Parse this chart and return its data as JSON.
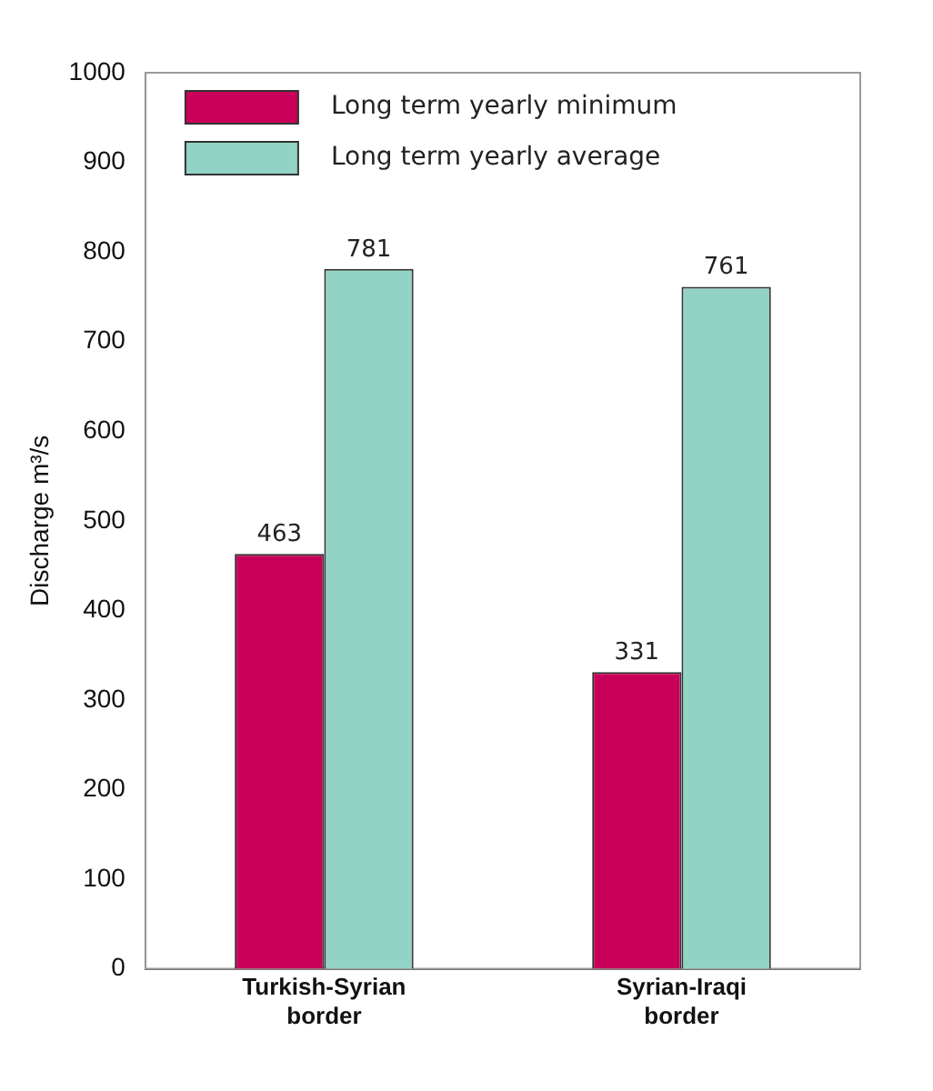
{
  "chart_data": {
    "type": "bar",
    "ylabel": "Discharge m³/s",
    "categories": [
      "Turkish-Syrian border",
      "Syrian-Iraqi border"
    ],
    "series": [
      {
        "name": "Long term yearly minimum",
        "color": "#c8005a",
        "values": [
          463,
          331
        ]
      },
      {
        "name": "Long term yearly average",
        "color": "#93d3c5",
        "values": [
          781,
          761
        ]
      }
    ],
    "ylim": [
      0,
      1000
    ],
    "yticks": [
      0,
      100,
      200,
      300,
      400,
      500,
      600,
      700,
      800,
      900,
      1000
    ],
    "grid": false,
    "legend": "top left",
    "data_labels": true
  }
}
